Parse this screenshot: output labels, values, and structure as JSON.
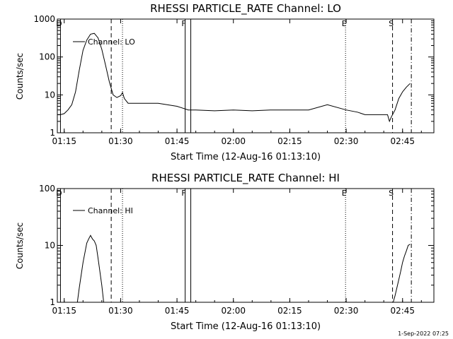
{
  "chart_data": [
    {
      "type": "line",
      "title": "RHESSI PARTICLE_RATE Channel: LO",
      "xlabel": "Start Time (12-Aug-16 01:13:10)",
      "ylabel": "Counts/sec",
      "y_scale": "log",
      "ylim": [
        1,
        1000
      ],
      "xlim": [
        "01:13:10",
        "02:53:20"
      ],
      "x_ticks": [
        "01:15",
        "01:30",
        "01:45",
        "02:00",
        "02:15",
        "02:30",
        "02:45"
      ],
      "y_ticks": [
        "1",
        "10",
        "100",
        "1000"
      ],
      "legend": {
        "entries": [
          "Channel: LO"
        ],
        "placement": "top-left"
      },
      "markers": [
        {
          "time": "01:14:00",
          "label": "D",
          "style": "solid"
        },
        {
          "time": "01:27:30",
          "label": "",
          "style": "dashed"
        },
        {
          "time": "01:30:30",
          "label": "",
          "style": "dotted"
        },
        {
          "time": "01:47:10",
          "label": "F",
          "style": "solid"
        },
        {
          "time": "01:48:40",
          "label": "",
          "style": "solid"
        },
        {
          "time": "02:29:50",
          "label": "E",
          "style": "dotted"
        },
        {
          "time": "02:42:20",
          "label": "S",
          "style": "dashed"
        },
        {
          "time": "02:47:20",
          "label": "",
          "style": "dashdot"
        }
      ],
      "series": [
        {
          "name": "Channel: LO",
          "x": [
            "01:13:10",
            "01:14:00",
            "01:15:00",
            "01:16:00",
            "01:17:00",
            "01:18:00",
            "01:19:00",
            "01:20:00",
            "01:21:00",
            "01:22:00",
            "01:23:00",
            "01:24:00",
            "01:25:00",
            "01:26:00",
            "01:27:00",
            "01:28:00",
            "01:29:00",
            "01:30:00",
            "01:30:30",
            "01:31:00",
            "01:32:00",
            "01:35:00",
            "01:40:00",
            "01:45:00",
            "01:48:00",
            "01:50:00",
            "01:55:00",
            "02:00:00",
            "02:05:00",
            "02:10:00",
            "02:15:00",
            "02:20:00",
            "02:25:00",
            "02:30:00",
            "02:33:00",
            "02:35:00",
            "02:38:00",
            "02:41:00",
            "02:41:30",
            "02:42:00",
            "02:43:00",
            "02:44:00",
            "02:45:00",
            "02:46:00",
            "02:47:00"
          ],
          "y": [
            3.0,
            3.0,
            3.2,
            4.0,
            5.5,
            12,
            45,
            150,
            280,
            400,
            420,
            320,
            160,
            60,
            22,
            10,
            8.5,
            9.5,
            11.5,
            8,
            6,
            6,
            6,
            5,
            4,
            4,
            3.8,
            4,
            3.8,
            4,
            4,
            4,
            5.5,
            4,
            3.5,
            3,
            3,
            3,
            2,
            2.6,
            4,
            8,
            12,
            16,
            20
          ]
        }
      ]
    },
    {
      "type": "line",
      "title": "RHESSI PARTICLE_RATE Channel: HI",
      "xlabel": "Start Time (12-Aug-16 01:13:10)",
      "ylabel": "Counts/sec",
      "y_scale": "log",
      "ylim": [
        1,
        100
      ],
      "xlim": [
        "01:13:10",
        "02:53:20"
      ],
      "x_ticks": [
        "01:15",
        "01:30",
        "01:45",
        "02:00",
        "02:15",
        "02:30",
        "02:45"
      ],
      "y_ticks": [
        "1",
        "10",
        "100"
      ],
      "legend": {
        "entries": [
          "Channel: HI"
        ],
        "placement": "top-left"
      },
      "markers": [
        {
          "time": "01:14:00",
          "label": "D",
          "style": "solid"
        },
        {
          "time": "01:27:30",
          "label": "",
          "style": "dashed"
        },
        {
          "time": "01:30:30",
          "label": "",
          "style": "dotted"
        },
        {
          "time": "01:47:10",
          "label": "F",
          "style": "solid"
        },
        {
          "time": "01:48:40",
          "label": "",
          "style": "solid"
        },
        {
          "time": "02:29:50",
          "label": "E",
          "style": "dotted"
        },
        {
          "time": "02:42:20",
          "label": "S",
          "style": "dashed"
        },
        {
          "time": "02:47:20",
          "label": "",
          "style": "dashdot"
        }
      ],
      "series": [
        {
          "name": "Channel: HI",
          "x": [
            "01:18:30",
            "01:19:00",
            "01:20:00",
            "01:21:00",
            "01:21:30",
            "01:22:00",
            "01:22:30",
            "01:23:00",
            "01:23:30",
            "01:24:00",
            "01:25:00",
            "01:25:30"
          ],
          "y": [
            1,
            1.8,
            5,
            11,
            13,
            15,
            13,
            12,
            10,
            6,
            2,
            1
          ]
        },
        {
          "name": "Channel: HI",
          "x": [
            "02:42:30",
            "02:43:00",
            "02:44:00",
            "02:44:30",
            "02:45:00",
            "02:45:30",
            "02:46:00",
            "02:46:30",
            "02:47:00"
          ],
          "y": [
            1,
            1.3,
            2.5,
            3.5,
            5,
            6.5,
            8,
            10,
            10.5
          ]
        }
      ]
    }
  ],
  "footer": {
    "timestamp": "1-Sep-2022 07:25"
  }
}
